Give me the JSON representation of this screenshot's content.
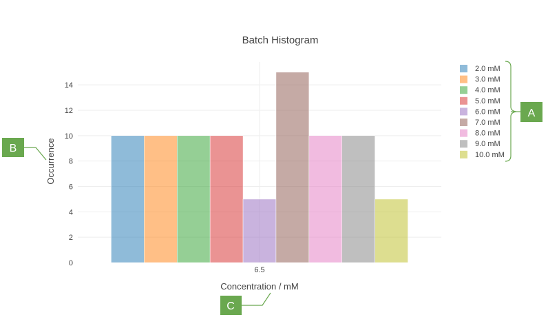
{
  "chart_data": {
    "type": "bar",
    "title": "Batch Histogram",
    "xlabel": "Concentration / mM",
    "ylabel": "Occurrence",
    "categories": [
      "6.5"
    ],
    "ylim": [
      0,
      15.8
    ],
    "yticks": [
      0,
      2,
      4,
      6,
      8,
      10,
      12,
      14
    ],
    "grid": true,
    "legend_position": "right",
    "series": [
      {
        "name": "2.0 mM",
        "values": [
          10
        ],
        "color": "#1f77b4"
      },
      {
        "name": "3.0 mM",
        "values": [
          10
        ],
        "color": "#ff7f0e"
      },
      {
        "name": "4.0 mM",
        "values": [
          10
        ],
        "color": "#2ca02c"
      },
      {
        "name": "5.0 mM",
        "values": [
          10
        ],
        "color": "#d62728"
      },
      {
        "name": "6.0 mM",
        "values": [
          5
        ],
        "color": "#9467bd"
      },
      {
        "name": "7.0 mM",
        "values": [
          15
        ],
        "color": "#8c564b"
      },
      {
        "name": "8.0 mM",
        "values": [
          10
        ],
        "color": "#e377c2"
      },
      {
        "name": "9.0 mM",
        "values": [
          10
        ],
        "color": "#7f7f7f"
      },
      {
        "name": "10.0 mM",
        "values": [
          5
        ],
        "color": "#bcbd22"
      }
    ],
    "bar_opacity": 0.5
  },
  "annotations": {
    "callout_color": "#6aa84f",
    "labels": {
      "legend": "A",
      "y_axis": "B",
      "x_axis": "C"
    }
  }
}
